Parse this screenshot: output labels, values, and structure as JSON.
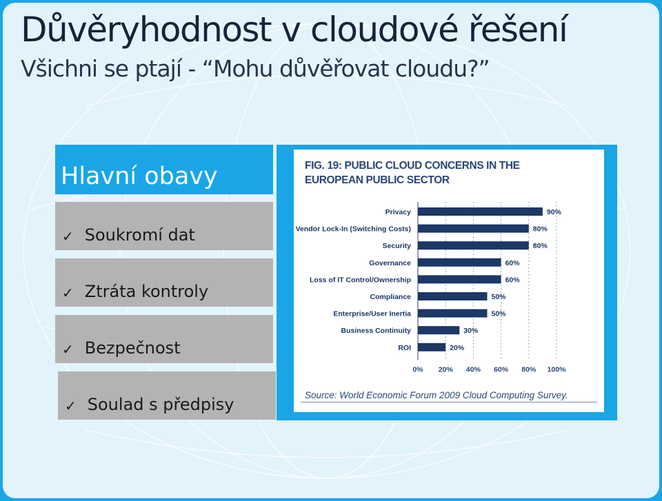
{
  "slide": {
    "title": "Důvěryhodnost v cloudové řešení",
    "subtitle": "Všichni se ptají - “Mohu důvěřovat cloudu?”"
  },
  "concerns": {
    "heading": "Hlavní obavy",
    "check_symbol": "✓",
    "items": [
      "Soukromí dat",
      "Ztráta kontroly",
      "Bezpečnost",
      "Soulad s předpisy"
    ]
  },
  "colors": {
    "frame": "#1aa6e6",
    "bar": "#1d3766",
    "panel_gray": "#b3b3b3"
  },
  "chart_data": {
    "type": "bar",
    "orientation": "horizontal",
    "title": "FIG. 19: PUBLIC CLOUD CONCERNS IN THE EUROPEAN PUBLIC SECTOR",
    "source": "Source: World Economic Forum 2009 Cloud Computing Survey.",
    "categories": [
      "Privacy",
      "Vendor Lock-In (Switching Costs)",
      "Security",
      "Governance",
      "Loss of IT Control/Ownership",
      "Compliance",
      "Enterprise/User Inertia",
      "Business Continuity",
      "ROI"
    ],
    "values": [
      90,
      80,
      80,
      60,
      60,
      50,
      50,
      30,
      20
    ],
    "value_labels": [
      "90%",
      "80%",
      "80%",
      "60%",
      "60%",
      "50%",
      "50%",
      "30%",
      "20%"
    ],
    "xlim": [
      0,
      100
    ],
    "xticks": [
      "0%",
      "20%",
      "40%",
      "60%",
      "80%",
      "100%"
    ],
    "grid": true,
    "legend": "none"
  }
}
